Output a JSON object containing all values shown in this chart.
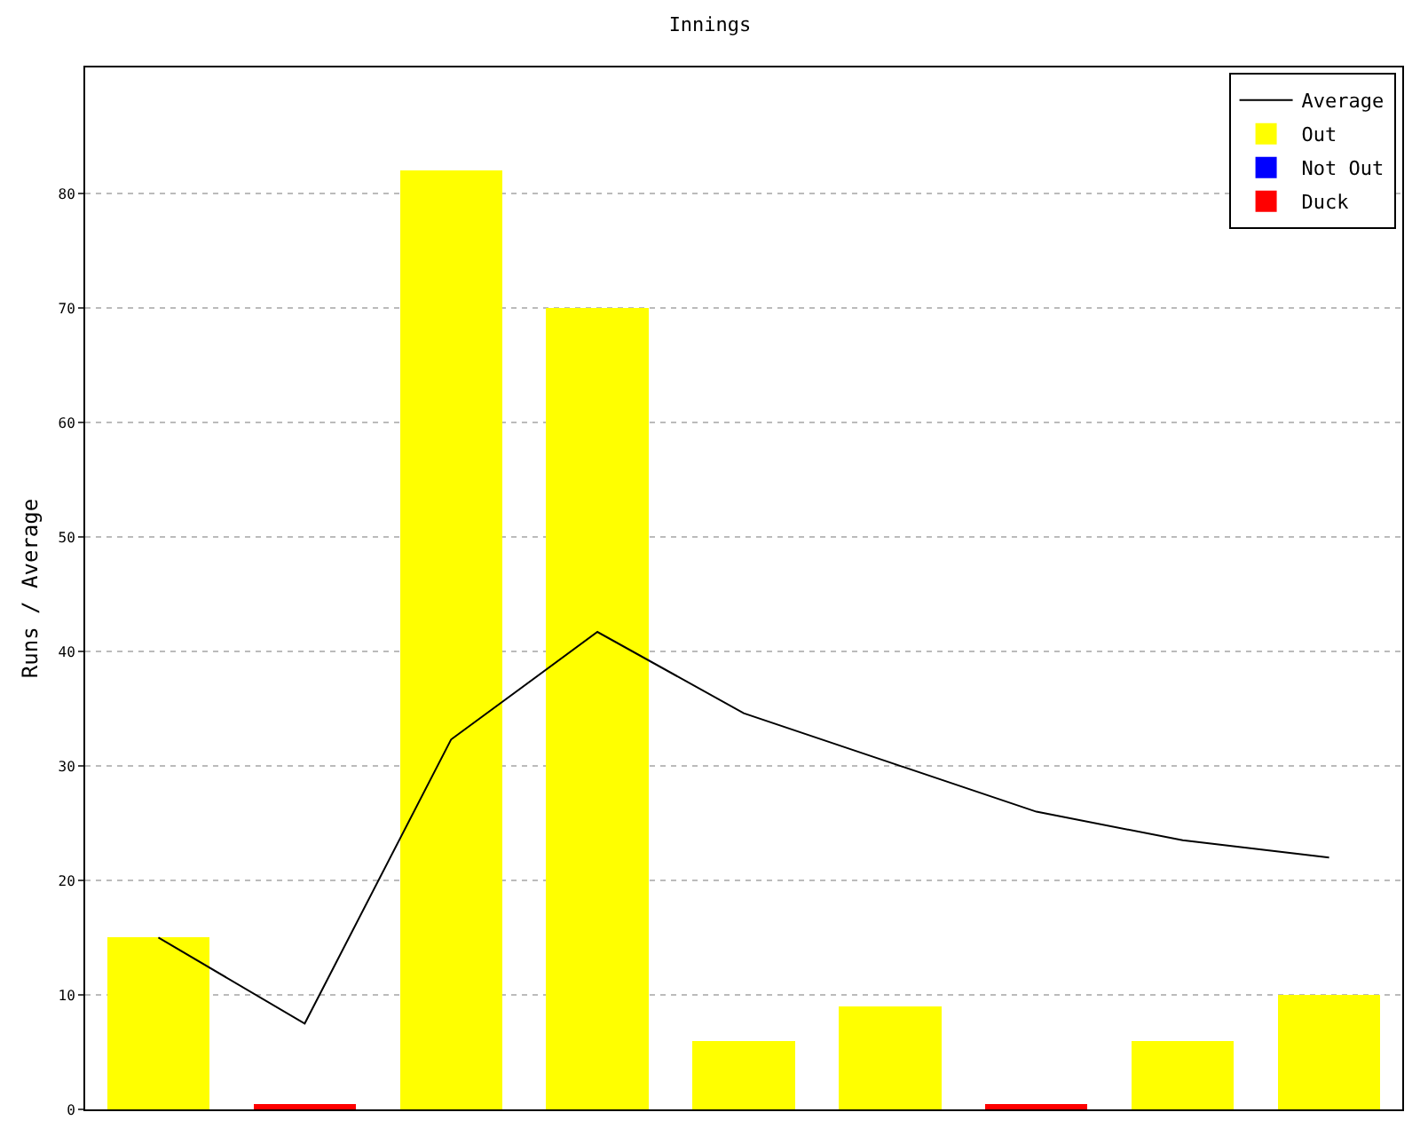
{
  "chart_data": {
    "type": "bar",
    "title": "Innings",
    "ylabel": "Runs / Average",
    "categories": [
      null,
      null,
      null,
      null,
      null,
      null,
      null,
      null,
      null
    ],
    "stacked": true,
    "ylim": [
      0,
      91
    ],
    "yticks": [
      0,
      10,
      20,
      30,
      40,
      50,
      60,
      70,
      80
    ],
    "grid": "y",
    "legend": "top right",
    "marker": "none",
    "series": [
      {
        "name": "Average",
        "type": "line",
        "color": "#000000",
        "values": [
          15,
          7.5,
          32.3,
          41.7,
          34.6,
          30.3,
          26,
          23.5,
          22
        ]
      },
      {
        "name": "Out",
        "color": "#ffff00",
        "values": [
          15,
          null,
          82,
          70,
          6,
          9,
          null,
          6,
          10
        ]
      },
      {
        "name": "Not Out",
        "color": "#0000ff",
        "values": [
          null,
          null,
          null,
          null,
          null,
          null,
          null,
          null,
          null
        ]
      },
      {
        "name": "Duck",
        "color": "#ff0000",
        "values": [
          null,
          0.5,
          null,
          null,
          null,
          null,
          0.5,
          null,
          null
        ]
      }
    ]
  }
}
